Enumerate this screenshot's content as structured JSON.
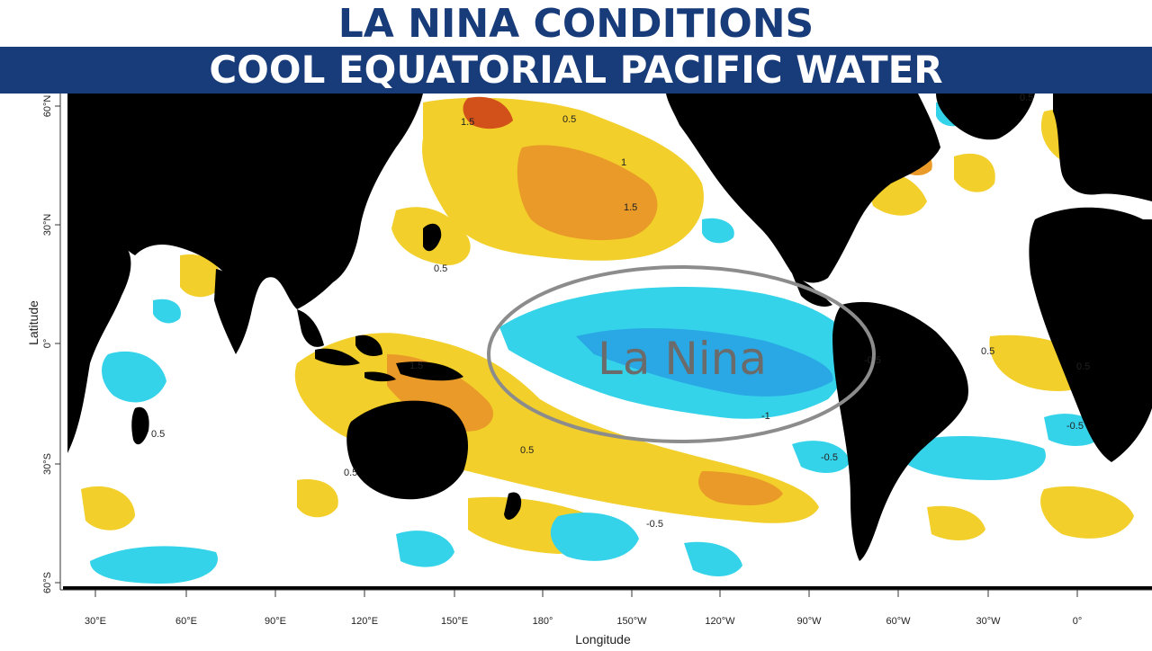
{
  "header": {
    "title": "LA NINA CONDITIONS",
    "subtitle": "COOL EQUATORIAL PACIFIC WATER"
  },
  "map": {
    "annotation": "La Nina",
    "x_axis_label": "Longitude",
    "y_axis_label": "Latitude",
    "longitude_ticks": [
      "30°E",
      "60°E",
      "90°E",
      "120°E",
      "150°E",
      "180°",
      "150°W",
      "120°W",
      "90°W",
      "60°W",
      "30°W",
      "0°"
    ],
    "latitude_ticks": [
      "60°N",
      "30°N",
      "0°",
      "30°S",
      "60°S"
    ],
    "contour_labels": [
      "1.5",
      "0.5",
      "1",
      "1.5",
      "0.5",
      "0.5",
      "0.5",
      "1.5",
      "0.5",
      "-1",
      "-0.5",
      "0.5",
      "-0.5",
      "-0.5",
      "0.5",
      "-0.5",
      "0.5"
    ],
    "colors": {
      "land": "#000000",
      "warm_light": "#f2cf2a",
      "warm_strong": "#e99a28",
      "warm_extreme": "#d2511a",
      "cool_light": "#35d3ea",
      "cool_strong": "#2aa8e6",
      "neutral": "#ffffff",
      "ellipse": "#8c8c8c",
      "title": "#183b7a"
    }
  }
}
